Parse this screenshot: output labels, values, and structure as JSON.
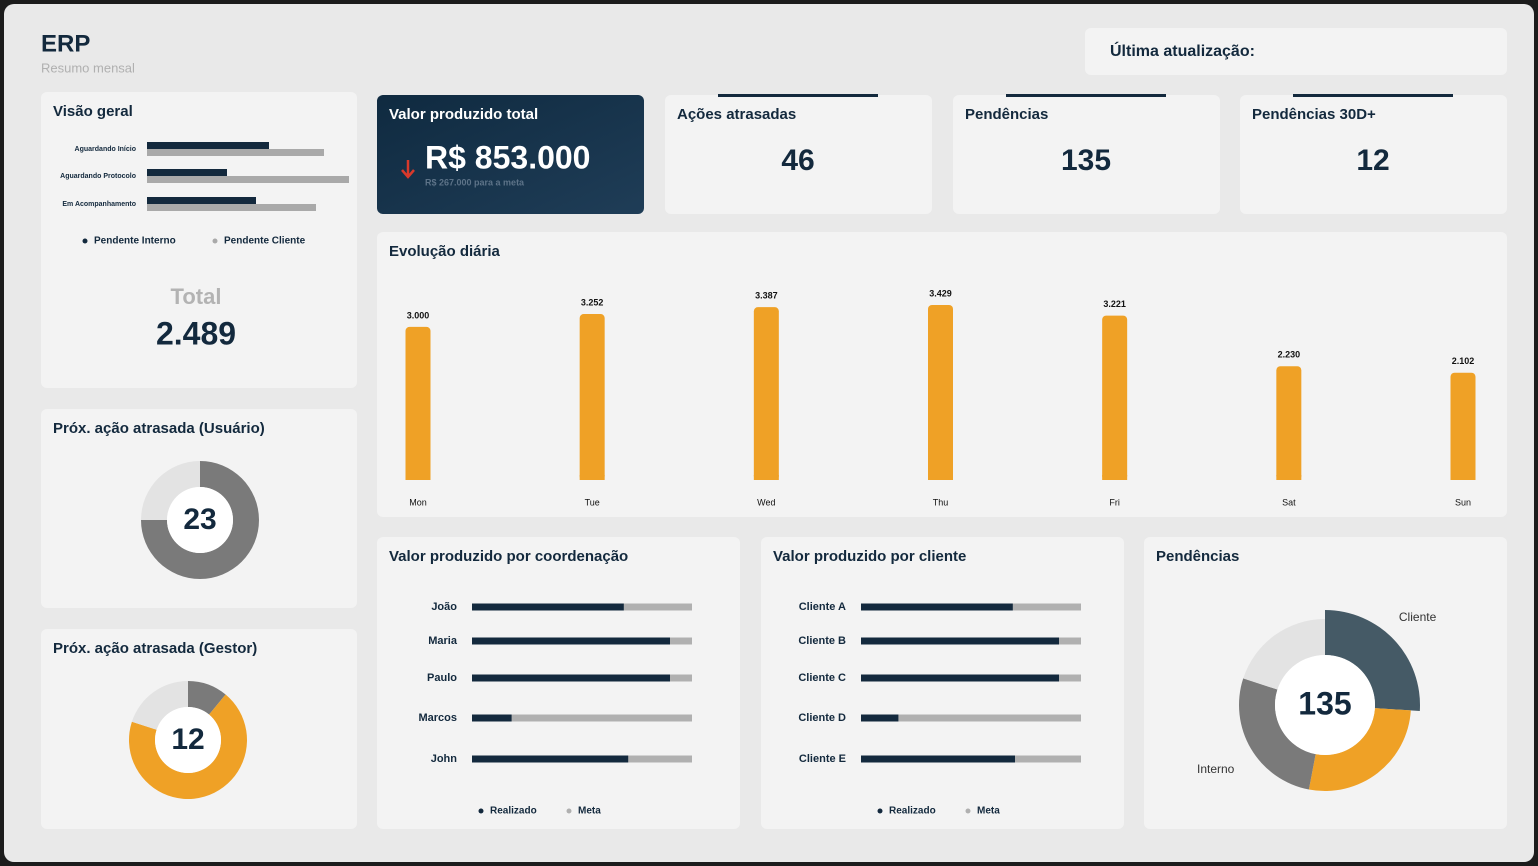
{
  "header": {
    "title": "ERP",
    "subtitle": "Resumo mensal",
    "update_label": "Última atualização:"
  },
  "kpis": [
    {
      "title": "Valor produzido total",
      "value": "R$ 853.000",
      "note": "R$ 267.000 para a meta"
    },
    {
      "title": "Ações atrasadas",
      "value": 46
    },
    {
      "title": "Pendências",
      "value": 135
    },
    {
      "title": "Pendências 30D+",
      "value": 12
    }
  ],
  "total": {
    "label": "Total",
    "value": "2.489"
  },
  "chart_data": [
    {
      "type": "hbar",
      "title": "Visão geral",
      "categories": [
        "Aguardando Início",
        "Aguardando Protocolo",
        "Em Acompanhamento"
      ],
      "series": [
        {
          "name": "Pendente Interno",
          "color": "#13293d",
          "values": [
            122,
            80,
            109
          ]
        },
        {
          "name": "Pendente Cliente",
          "color": "#a9a9a9",
          "values": [
            177,
            202,
            169
          ]
        }
      ]
    },
    {
      "type": "donut",
      "title": "Próx. ação atrasada (Usuário)",
      "center_label": 23,
      "categories": [
        null,
        null
      ],
      "values": [
        75,
        25
      ],
      "colors": [
        "#7a7a7a",
        "#e3e3e3"
      ]
    },
    {
      "type": "donut",
      "title": "Próx. ação atrasada (Gestor)",
      "center_label": 12,
      "categories": [
        null,
        null,
        null
      ],
      "values": [
        11,
        69,
        20
      ],
      "colors": [
        "#7a7a7a",
        "#efa126",
        "#e3e3e3"
      ]
    },
    {
      "type": "bar",
      "title": "Evolução diária",
      "color": "#efa126",
      "categories": [
        "Mon",
        "Tue",
        "Wed",
        "Thu",
        "Fri",
        "Sat",
        "Sun"
      ],
      "values": [
        3000,
        3252,
        3387,
        3429,
        3221,
        2230,
        2102
      ],
      "value_labels": [
        "3.000",
        "3.252",
        "3.387",
        "3.429",
        "3.221",
        "2.230",
        "2.102"
      ]
    },
    {
      "type": "progress",
      "title": "Valor produzido por coordenação",
      "categories": [
        "João",
        "Maria",
        "Paulo",
        "Marcos",
        "John"
      ],
      "series": [
        {
          "name": "Realizado",
          "color": "#13293d",
          "values": [
            69,
            90,
            90,
            18,
            71
          ]
        },
        {
          "name": "Meta",
          "color": "#b0b0b0",
          "values": [
            100,
            100,
            100,
            100,
            100
          ]
        }
      ]
    },
    {
      "type": "progress",
      "title": "Valor produzido por cliente",
      "categories": [
        "Cliente A",
        "Cliente B",
        "Cliente C",
        "Cliente D",
        "Cliente E"
      ],
      "series": [
        {
          "name": "Realizado",
          "color": "#13293d",
          "values": [
            69,
            90,
            90,
            17,
            70
          ]
        },
        {
          "name": "Meta",
          "color": "#b0b0b0",
          "values": [
            100,
            100,
            100,
            100,
            100
          ]
        }
      ]
    },
    {
      "type": "donut",
      "title": "Pendências",
      "center_label": 135,
      "categories": [
        "Cliente",
        null,
        "Interno",
        null
      ],
      "values": [
        26,
        27,
        27,
        20
      ],
      "colors": [
        "#455a66",
        "#efa126",
        "#7a7a7a",
        "#e3e3e3"
      ]
    }
  ]
}
